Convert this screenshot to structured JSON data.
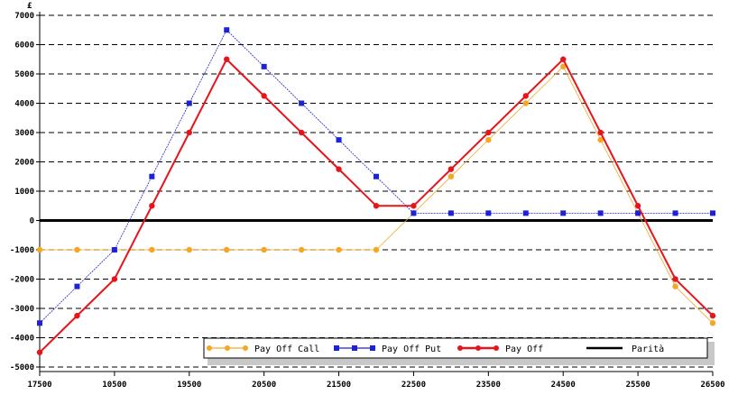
{
  "chart_data": {
    "type": "line",
    "ylabel": "£",
    "ylim": [
      -5000,
      7000
    ],
    "yticks": [
      7000,
      6000,
      5000,
      4000,
      3000,
      2000,
      1000,
      0,
      -1000,
      -2000,
      -3000,
      -4000,
      -5000
    ],
    "ytick_labels": [
      "7000",
      "6000",
      "5000",
      "4000",
      "3000",
      "2000",
      "1000",
      "0",
      "-1000",
      "-2000",
      "-3000",
      "-4000",
      "-5000"
    ],
    "x_labels": [
      "17500",
      "10500",
      "19500",
      "20500",
      "21500",
      "22500",
      "23500",
      "24500",
      "25500",
      "26500"
    ],
    "grid": "horizontal-dashed",
    "legend_position": "bottom-right",
    "series": [
      {
        "name": "Pay Off Call",
        "color": "#f5a623",
        "values": [
          -1000,
          -1000,
          -1000,
          -1000,
          -1000,
          -1000,
          -1000,
          -1000,
          -1000,
          -1000,
          250,
          1500,
          2750,
          4000,
          5250,
          2750,
          250,
          -2250,
          -3500
        ]
      },
      {
        "name": "Pay Off Put",
        "color": "#1e22d6",
        "values": [
          -3500,
          -2250,
          -1000,
          1500,
          4000,
          6500,
          5250,
          4000,
          2750,
          1500,
          250,
          250,
          250,
          250,
          250,
          250,
          250,
          250,
          250
        ]
      },
      {
        "name": "Pay Off",
        "color": "#e8141c",
        "values": [
          -4500,
          -3250,
          -2000,
          500,
          3000,
          5500,
          4250,
          3000,
          1750,
          500,
          500,
          1750,
          3000,
          4250,
          5500,
          3000,
          500,
          -2000,
          -3250
        ]
      },
      {
        "name": "Parità",
        "color": "#000000",
        "values": [
          0,
          0,
          0,
          0,
          0,
          0,
          0,
          0,
          0,
          0,
          0,
          0,
          0,
          0,
          0,
          0,
          0,
          0,
          0
        ]
      }
    ]
  }
}
